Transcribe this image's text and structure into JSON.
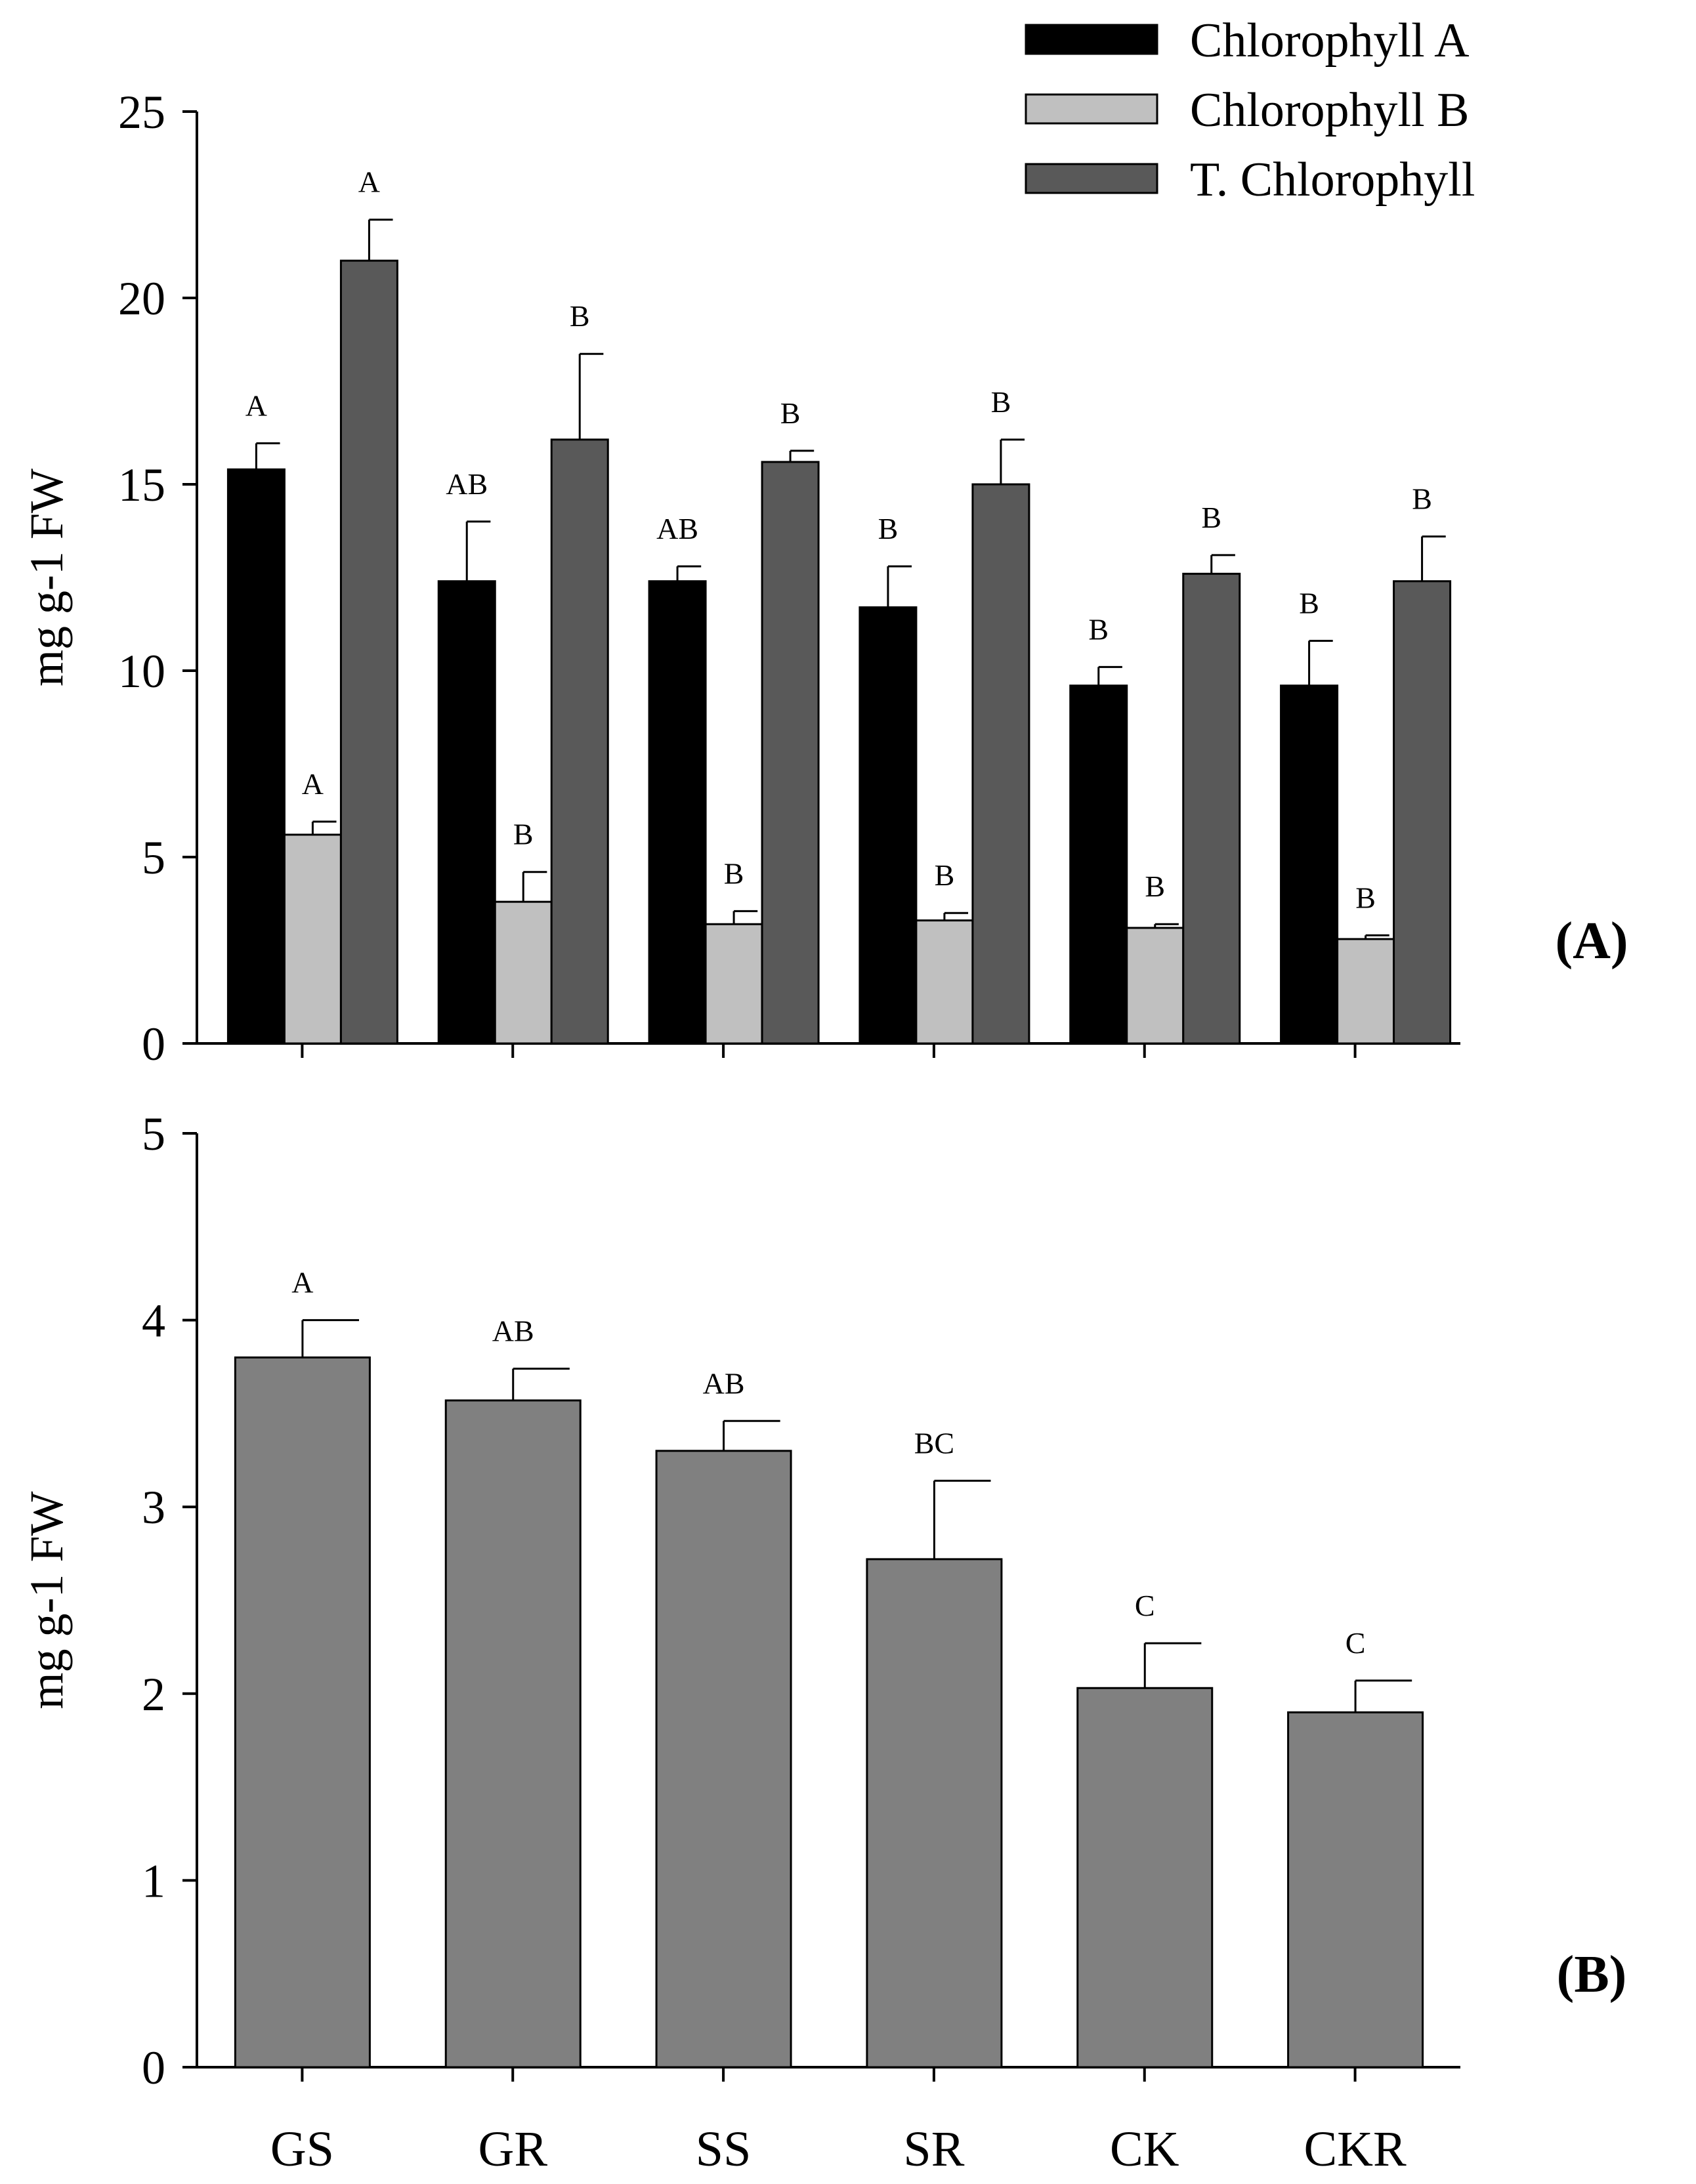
{
  "chart_data": [
    {
      "type": "bar",
      "panel_label": "(A)",
      "categories": [
        "GS",
        "GR",
        "SS",
        "SR",
        "CK",
        "CKR"
      ],
      "ylabel": "mg g-1 FW",
      "ylim": [
        0,
        25
      ],
      "yticks": [
        "0",
        "5",
        "10",
        "15",
        "20",
        "25"
      ],
      "legend_position": "top-right",
      "series": [
        {
          "name": "Chlorophyll A",
          "color": "#000000",
          "values": [
            15.4,
            12.4,
            12.4,
            11.7,
            9.6,
            9.6
          ],
          "errors": [
            0.7,
            1.6,
            0.4,
            1.1,
            0.5,
            1.2
          ],
          "letters": [
            "A",
            "AB",
            "AB",
            "B",
            "B",
            "B"
          ]
        },
        {
          "name": "Chlorophyll B",
          "color": "#c0c0c0",
          "values": [
            5.6,
            3.8,
            3.2,
            3.3,
            3.1,
            2.8
          ],
          "errors": [
            0.35,
            0.8,
            0.35,
            0.2,
            0.1,
            0.1
          ],
          "letters": [
            "A",
            "B",
            "B",
            "B",
            "B",
            "B"
          ]
        },
        {
          "name": "T. Chlorophyll",
          "color": "#595959",
          "values": [
            21.0,
            16.2,
            15.6,
            15.0,
            12.6,
            12.4
          ],
          "errors": [
            1.1,
            2.3,
            0.3,
            1.2,
            0.5,
            1.2
          ],
          "letters": [
            "A",
            "B",
            "B",
            "B",
            "B",
            "B"
          ]
        }
      ]
    },
    {
      "type": "bar",
      "panel_label": "(B)",
      "categories": [
        "GS",
        "GR",
        "SS",
        "SR",
        "CK",
        "CKR"
      ],
      "ylabel": "mg g-1 FW",
      "ylim": [
        0,
        5
      ],
      "yticks": [
        "0",
        "1",
        "2",
        "3",
        "4",
        "5"
      ],
      "series": [
        {
          "name": "",
          "color": "#808080",
          "values": [
            3.8,
            3.57,
            3.3,
            2.72,
            2.03,
            1.9
          ],
          "errors": [
            0.2,
            0.17,
            0.16,
            0.42,
            0.24,
            0.17
          ],
          "letters": [
            "A",
            "AB",
            "AB",
            "BC",
            "C",
            "C"
          ]
        }
      ]
    }
  ]
}
